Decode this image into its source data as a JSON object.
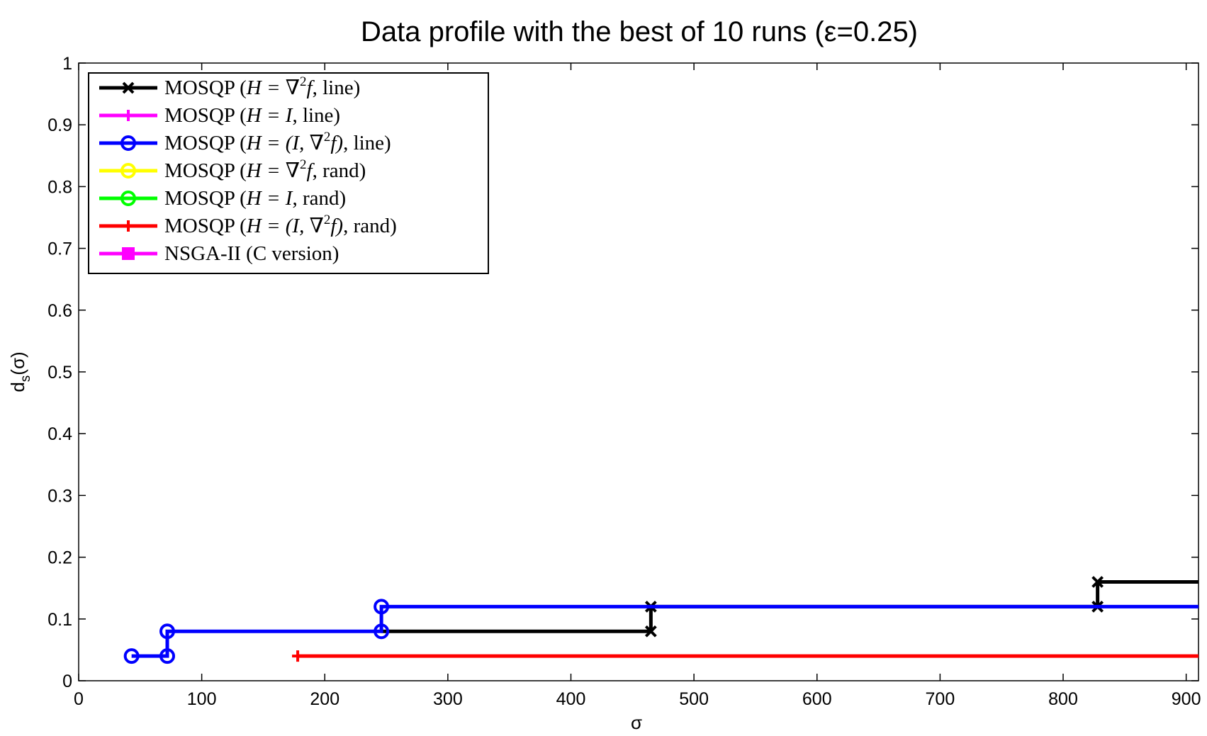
{
  "chart_data": {
    "type": "line",
    "title": "Data profile with the best of 10 runs (ε=0.25)",
    "xlabel": "σ",
    "ylabel_main": "d",
    "ylabel_sub": "s",
    "ylabel_tail": "(σ)",
    "xlim": [
      0,
      910
    ],
    "ylim": [
      0,
      1
    ],
    "xticks": [
      0,
      100,
      200,
      300,
      400,
      500,
      600,
      700,
      800,
      900
    ],
    "xtick_labels": [
      "0",
      "100",
      "200",
      "300",
      "400",
      "500",
      "600",
      "700",
      "800",
      "900"
    ],
    "yticks": [
      0,
      0.1,
      0.2,
      0.3,
      0.4,
      0.5,
      0.6,
      0.7,
      0.8,
      0.9,
      1
    ],
    "ytick_labels": [
      "0",
      "0.1",
      "0.2",
      "0.3",
      "0.4",
      "0.5",
      "0.6",
      "0.7",
      "0.8",
      "0.9",
      "1"
    ],
    "grid": false,
    "legend_position": "top-left",
    "series": [
      {
        "name": "MOSQP (H = ∇²f, line)",
        "color": "#000000",
        "marker": "x",
        "step_points": [
          [
            465,
            0.08
          ],
          [
            465,
            0.12
          ],
          [
            828,
            0.12
          ],
          [
            828,
            0.16
          ],
          [
            910,
            0.16
          ]
        ],
        "line_points": [
          [
            246,
            0.08
          ],
          [
            465,
            0.08
          ],
          [
            465,
            0.12
          ],
          [
            828,
            0.12
          ],
          [
            828,
            0.16
          ],
          [
            910,
            0.16
          ]
        ],
        "markers": [
          [
            465,
            0.08
          ],
          [
            465,
            0.12
          ],
          [
            828,
            0.12
          ],
          [
            828,
            0.16
          ]
        ]
      },
      {
        "name": "MOSQP (H = I, line)",
        "color": "#ff00ff",
        "marker": "+",
        "line_points": [],
        "markers": []
      },
      {
        "name": "MOSQP (H = (I, ∇²f), line)",
        "color": "#0000ff",
        "marker": "o",
        "line_points": [
          [
            43,
            0.04
          ],
          [
            72,
            0.04
          ],
          [
            72,
            0.08
          ],
          [
            246,
            0.08
          ],
          [
            246,
            0.12
          ],
          [
            910,
            0.12
          ]
        ],
        "markers": [
          [
            43,
            0.04
          ],
          [
            72,
            0.04
          ],
          [
            72,
            0.08
          ],
          [
            246,
            0.08
          ],
          [
            246,
            0.12
          ]
        ]
      },
      {
        "name": "MOSQP (H = ∇²f, rand)",
        "color": "#ffff00",
        "marker": "o",
        "line_points": [],
        "markers": []
      },
      {
        "name": "MOSQP (H = I, rand)",
        "color": "#00ff00",
        "marker": "o",
        "line_points": [],
        "markers": []
      },
      {
        "name": "MOSQP (H = (I, ∇²f), rand)",
        "color": "#ff0000",
        "marker": "+",
        "line_points": [
          [
            178,
            0.04
          ],
          [
            910,
            0.04
          ]
        ],
        "markers": [
          [
            178,
            0.04
          ]
        ]
      },
      {
        "name": "NSGA-II (C version)",
        "color": "#ff00ff",
        "marker": "s",
        "line_points": [],
        "markers": []
      }
    ],
    "legend_entries": [
      {
        "prefix": "MOSQP (",
        "math": "H = ∇",
        "sup": "2",
        "tail_math": "f",
        "suffix": ", line)"
      },
      {
        "prefix": "MOSQP (",
        "math": "H = I",
        "sup": "",
        "tail_math": "",
        "suffix": ", line)"
      },
      {
        "prefix": "MOSQP (",
        "math": "H = (I, ∇",
        "sup": "2",
        "tail_math": "f)",
        "suffix": ", line)"
      },
      {
        "prefix": "MOSQP (",
        "math": "H = ∇",
        "sup": "2",
        "tail_math": "f",
        "suffix": ", rand)"
      },
      {
        "prefix": "MOSQP (",
        "math": "H = I",
        "sup": "",
        "tail_math": "",
        "suffix": ", rand)"
      },
      {
        "prefix": "MOSQP (",
        "math": "H = (I, ∇",
        "sup": "2",
        "tail_math": "f)",
        "suffix": ", rand)"
      },
      {
        "prefix": "NSGA-II (C version)",
        "math": "",
        "sup": "",
        "tail_math": "",
        "suffix": ""
      }
    ]
  }
}
